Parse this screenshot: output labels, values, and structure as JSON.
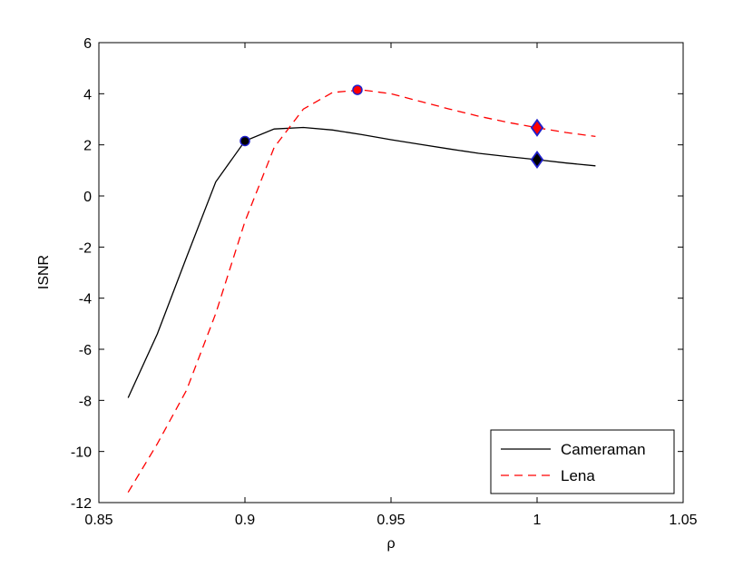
{
  "chart_data": {
    "type": "line",
    "xlabel": "ρ",
    "ylabel": "ISNR",
    "xlim": [
      0.85,
      1.05
    ],
    "ylim": [
      -12,
      6
    ],
    "x_ticks": [
      0.85,
      0.9,
      0.95,
      1,
      1.05
    ],
    "x_tick_labels": [
      "0.85",
      "0.9",
      "0.95",
      "1",
      "1.05"
    ],
    "y_ticks": [
      -12,
      -10,
      -8,
      -6,
      -4,
      -2,
      0,
      2,
      4,
      6
    ],
    "y_tick_labels": [
      "-12",
      "-10",
      "-8",
      "-6",
      "-4",
      "-2",
      "0",
      "2",
      "4",
      "6"
    ],
    "grid": false,
    "legend_position": "bottom-right",
    "series": [
      {
        "name": "Cameraman",
        "color": "#000000",
        "line_style": "solid",
        "x": [
          0.86,
          0.87,
          0.88,
          0.89,
          0.9,
          0.91,
          0.92,
          0.93,
          0.94,
          0.95,
          0.96,
          0.97,
          0.98,
          0.99,
          1.0,
          1.01,
          1.02
        ],
        "y": [
          -7.9,
          -5.4,
          -2.4,
          0.55,
          2.15,
          2.62,
          2.68,
          2.58,
          2.4,
          2.2,
          2.02,
          1.84,
          1.67,
          1.54,
          1.42,
          1.29,
          1.18
        ]
      },
      {
        "name": "Lena",
        "color": "#ff0000",
        "line_style": "dashed",
        "x": [
          0.86,
          0.87,
          0.88,
          0.89,
          0.9,
          0.91,
          0.92,
          0.93,
          0.94,
          0.95,
          0.96,
          0.97,
          0.98,
          0.99,
          1.0,
          1.01,
          1.02
        ],
        "y": [
          -11.6,
          -9.7,
          -7.6,
          -4.6,
          -1.0,
          1.9,
          3.4,
          4.05,
          4.15,
          4.0,
          3.7,
          3.4,
          3.12,
          2.88,
          2.67,
          2.48,
          2.33
        ]
      }
    ],
    "markers": [
      {
        "series": "Cameraman",
        "shape": "circle",
        "fill": "#000000",
        "stroke": "#1f1fcc",
        "x": 0.9,
        "y": 2.15
      },
      {
        "series": "Lena",
        "shape": "circle",
        "fill": "#ff0000",
        "stroke": "#1f1fcc",
        "x": 0.9385,
        "y": 4.15
      },
      {
        "series": "Lena",
        "shape": "diamond",
        "fill": "#ff0000",
        "stroke": "#1f1fcc",
        "x": 1.0,
        "y": 2.67
      },
      {
        "series": "Cameraman",
        "shape": "diamond",
        "fill": "#000000",
        "stroke": "#1f1fcc",
        "x": 1.0,
        "y": 1.42
      }
    ]
  }
}
